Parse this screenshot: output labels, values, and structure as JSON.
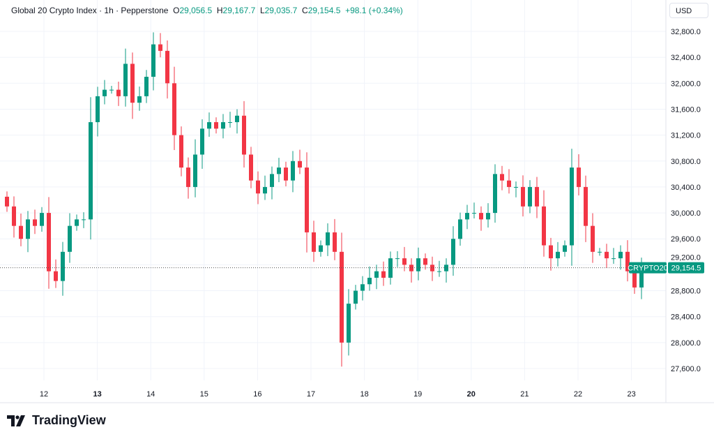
{
  "header": {
    "symbol": "Global 20 Crypto Index · 1h · Pepperstone",
    "o_label": "O",
    "o": "29,056.5",
    "h_label": "H",
    "h": "29,167.7",
    "l_label": "L",
    "l": "29,035.7",
    "c_label": "C",
    "c": "29,154.5",
    "change": "+98.1 (+0.34%)",
    "currency": "USD"
  },
  "last_price": {
    "ticker": "CRYPTO20",
    "value": "29,154.5"
  },
  "logo_text": "TradingView",
  "colors": {
    "up": "#089981",
    "down": "#f23645",
    "grid": "#f0f3fa",
    "text": "#131722"
  },
  "chart_data": {
    "type": "candlestick",
    "title": "Global 20 Crypto Index · 1h",
    "ylim": [
      27400,
      33000
    ],
    "yticks": [
      "32,800.0",
      "32,400.0",
      "32,000.0",
      "31,600.0",
      "31,200.0",
      "30,800.0",
      "30,400.0",
      "30,000.0",
      "29,600.0",
      "29,200.0",
      "28,800.0",
      "28,400.0",
      "28,000.0",
      "27,600.0"
    ],
    "ytick_values": [
      32800,
      32400,
      32000,
      31600,
      31200,
      30800,
      30400,
      30000,
      29600,
      29200,
      28800,
      28400,
      28000,
      27600
    ],
    "xticks": [
      {
        "label": "12",
        "bold": false
      },
      {
        "label": "13",
        "bold": true
      },
      {
        "label": "14",
        "bold": false
      },
      {
        "label": "15",
        "bold": false
      },
      {
        "label": "16",
        "bold": false
      },
      {
        "label": "17",
        "bold": false
      },
      {
        "label": "18",
        "bold": false
      },
      {
        "label": "19",
        "bold": false
      },
      {
        "label": "20",
        "bold": true
      },
      {
        "label": "21",
        "bold": false
      },
      {
        "label": "22",
        "bold": false
      },
      {
        "label": "23",
        "bold": false
      }
    ],
    "first_open": 30250,
    "closes": [
      30100,
      29800,
      29600,
      29900,
      29800,
      30000,
      29100,
      28950,
      29400,
      29800,
      29900,
      29900,
      31400,
      31800,
      31900,
      31900,
      31800,
      32300,
      31700,
      31800,
      32100,
      32600,
      32500,
      32000,
      31200,
      30700,
      30400,
      30900,
      31300,
      31400,
      31300,
      31400,
      31400,
      31500,
      30900,
      30500,
      30300,
      30400,
      30600,
      30700,
      30500,
      30800,
      30700,
      29700,
      29400,
      29500,
      29700,
      29400,
      28000,
      28600,
      28800,
      28900,
      29000,
      29100,
      29000,
      29300,
      29300,
      29200,
      29100,
      29300,
      29200,
      29100,
      29100,
      29200,
      29600,
      29900,
      30000,
      30000,
      29900,
      30000,
      30600,
      30500,
      30400,
      30400,
      30100,
      30400,
      30100,
      29500,
      29300,
      29400,
      29500,
      30700,
      30400,
      29800,
      29400,
      29400,
      29300,
      29300,
      29400,
      29100,
      28850,
      29154.5
    ],
    "last": 29154.5
  }
}
